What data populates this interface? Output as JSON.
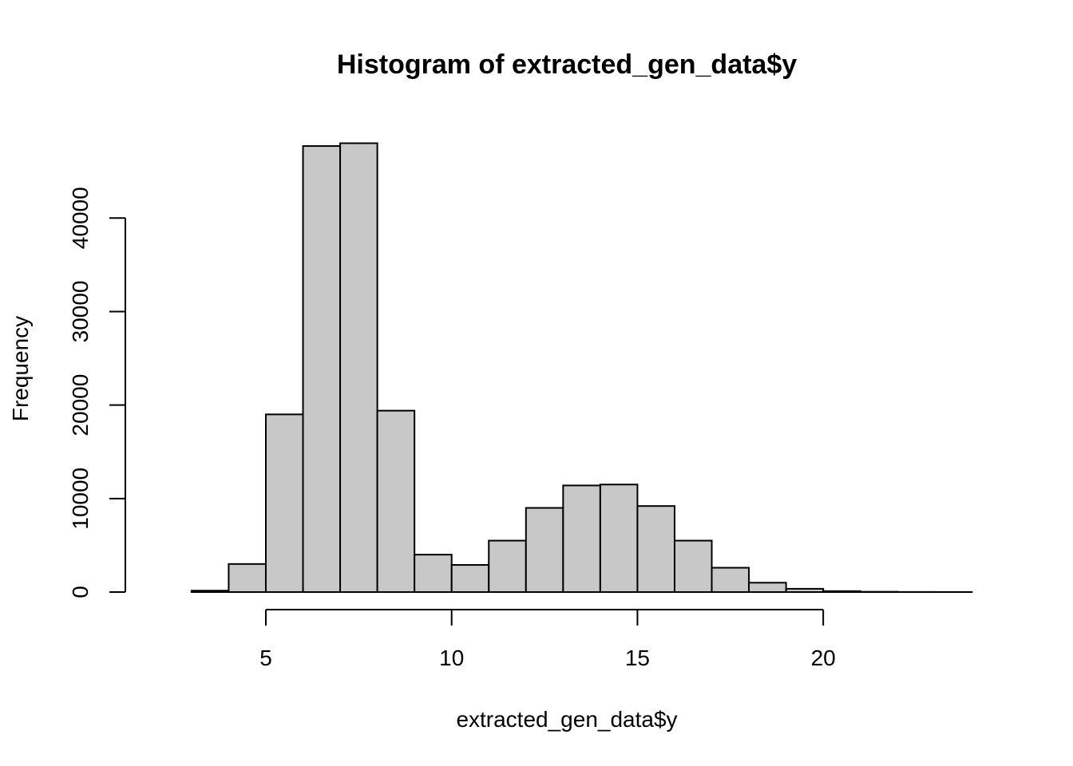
{
  "chart_data": {
    "type": "bar",
    "title": "Histogram of extracted_gen_data$y",
    "xlabel": "extracted_gen_data$y",
    "ylabel": "Frequency",
    "bin_edges": [
      3,
      4,
      5,
      6,
      7,
      8,
      9,
      10,
      11,
      12,
      13,
      14,
      15,
      16,
      17,
      18,
      19,
      20,
      21,
      22,
      23,
      24
    ],
    "values": [
      150,
      3000,
      19000,
      47700,
      48000,
      19400,
      4000,
      2900,
      5500,
      9000,
      11400,
      11500,
      9200,
      5500,
      2600,
      1000,
      350,
      100,
      30,
      10,
      5
    ],
    "xlim": [
      2.1,
      24.1
    ],
    "ylim": [
      0,
      48000
    ],
    "x_ticks": [
      5,
      10,
      15,
      20
    ],
    "y_ticks": [
      0,
      10000,
      20000,
      30000,
      40000
    ],
    "bar_color": "#c8c8c8",
    "edge_color": "#000000",
    "grid": false,
    "legend": "none"
  }
}
